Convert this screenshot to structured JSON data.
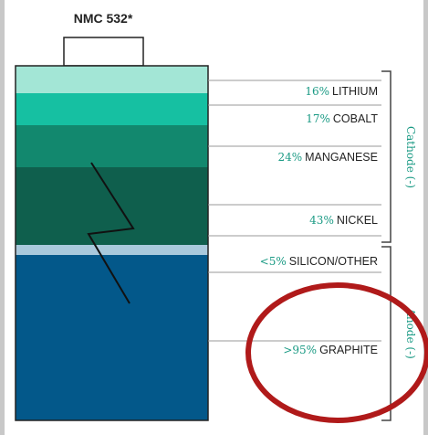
{
  "title": "NMC 532*",
  "cathode": {
    "label": "Cathode (-)",
    "items": [
      {
        "percent": "16%",
        "name": "LITHIUM"
      },
      {
        "percent": "17%",
        "name": "COBALT"
      },
      {
        "percent": "24%",
        "name": "MANGANESE"
      },
      {
        "percent": "43%",
        "name": "NICKEL"
      }
    ]
  },
  "anode": {
    "label": "Anode (-)",
    "items": [
      {
        "percent": "<5%",
        "name": "SILICON/OTHER"
      },
      {
        "percent": ">95%",
        "name": "GRAPHITE"
      }
    ]
  }
}
